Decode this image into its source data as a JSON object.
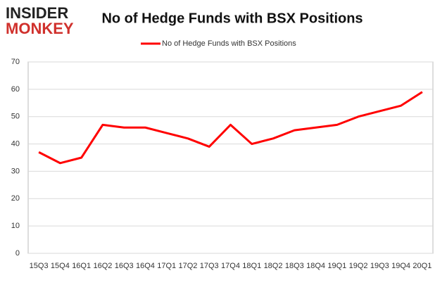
{
  "logo": {
    "line1": "INSIDER",
    "line2": "MONKEY"
  },
  "chart_data": {
    "type": "line",
    "title": "No of Hedge Funds with BSX Positions",
    "categories": [
      "15Q3",
      "15Q4",
      "16Q1",
      "16Q2",
      "16Q3",
      "16Q4",
      "17Q1",
      "17Q2",
      "17Q3",
      "17Q4",
      "18Q1",
      "18Q2",
      "18Q3",
      "18Q4",
      "19Q1",
      "19Q2",
      "19Q3",
      "19Q4",
      "20Q1"
    ],
    "series": [
      {
        "name": "No of Hedge Funds with BSX Positions",
        "color": "#ff0000",
        "values": [
          37,
          33,
          35,
          47,
          46,
          46,
          44,
          42,
          39,
          47,
          40,
          42,
          45,
          46,
          47,
          50,
          52,
          54,
          59
        ]
      }
    ],
    "ylim": [
      0,
      70
    ],
    "yticks": [
      0,
      10,
      20,
      30,
      40,
      50,
      60,
      70
    ],
    "grid": true,
    "legend": "top"
  }
}
